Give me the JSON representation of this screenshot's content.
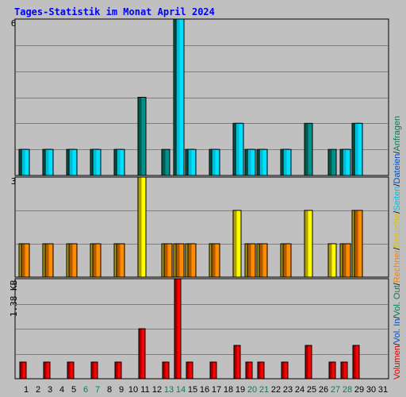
{
  "title": "Tages-Statistik im Monat April 2024",
  "colors": {
    "background": "#c0c0c0",
    "title": "#0000ff",
    "grid": "#808080",
    "weekend_label": "#00805c",
    "hits_front": "#00e0ff",
    "hits_side": "#009090",
    "files_front": "#00bcd4",
    "files_side": "#00806b",
    "visits_front": "#ffff00",
    "visits_side": "#b0a000",
    "sites_front": "#ff8c00",
    "sites_side": "#b05a00",
    "volume_front": "#ff0000",
    "volume_side": "#a00000"
  },
  "right_legend": [
    {
      "text": "Anfragen",
      "color": "#00805c"
    },
    {
      "text": "Dateien",
      "color": "#0050c0"
    },
    {
      "text": "Seiten",
      "color": "#00c0e0"
    },
    {
      "text": "Besuche",
      "color": "#e0c000"
    },
    {
      "text": "Rechner",
      "color": "#ff8000"
    },
    {
      "text": "Vol. Out",
      "color": "#00805c"
    },
    {
      "text": "Vol. In",
      "color": "#0050c0"
    },
    {
      "text": "Volumen",
      "color": "#e00000"
    }
  ],
  "x_labels": [
    {
      "day": "1",
      "weekend": false
    },
    {
      "day": "2",
      "weekend": false
    },
    {
      "day": "3",
      "weekend": false
    },
    {
      "day": "4",
      "weekend": false
    },
    {
      "day": "5",
      "weekend": false
    },
    {
      "day": "6",
      "weekend": true
    },
    {
      "day": "7",
      "weekend": true
    },
    {
      "day": "8",
      "weekend": false
    },
    {
      "day": "9",
      "weekend": false
    },
    {
      "day": "10",
      "weekend": false
    },
    {
      "day": "11",
      "weekend": false
    },
    {
      "day": "12",
      "weekend": false
    },
    {
      "day": "13",
      "weekend": true
    },
    {
      "day": "14",
      "weekend": true
    },
    {
      "day": "15",
      "weekend": false
    },
    {
      "day": "16",
      "weekend": false
    },
    {
      "day": "17",
      "weekend": false
    },
    {
      "day": "18",
      "weekend": false
    },
    {
      "day": "19",
      "weekend": false
    },
    {
      "day": "20",
      "weekend": true
    },
    {
      "day": "21",
      "weekend": true
    },
    {
      "day": "22",
      "weekend": false
    },
    {
      "day": "23",
      "weekend": false
    },
    {
      "day": "24",
      "weekend": false
    },
    {
      "day": "25",
      "weekend": false
    },
    {
      "day": "26",
      "weekend": false
    },
    {
      "day": "27",
      "weekend": true
    },
    {
      "day": "28",
      "weekend": true
    },
    {
      "day": "29",
      "weekend": false
    },
    {
      "day": "30",
      "weekend": false
    },
    {
      "day": "31",
      "weekend": false
    }
  ],
  "chart_data": [
    {
      "type": "bar",
      "panel": "requests",
      "y_max_label": "6",
      "ylim": [
        0,
        6
      ],
      "categories": [
        "1",
        "2",
        "3",
        "4",
        "5",
        "6",
        "7",
        "8",
        "9",
        "10",
        "11",
        "12",
        "13",
        "14",
        "15",
        "16",
        "17",
        "18",
        "19",
        "20",
        "21",
        "22",
        "23",
        "24",
        "25",
        "26",
        "27",
        "28",
        "29",
        "30",
        "31"
      ],
      "series": [
        {
          "name": "Anfragen",
          "values": [
            1,
            0,
            1,
            0,
            1,
            0,
            1,
            0,
            1,
            0,
            3,
            0,
            1,
            6,
            1,
            0,
            1,
            0,
            2,
            1,
            1,
            0,
            1,
            0,
            2,
            0,
            1,
            1,
            2,
            0,
            0
          ]
        },
        {
          "name": "Dateien",
          "values": [
            1,
            0,
            1,
            0,
            1,
            0,
            1,
            0,
            1,
            0,
            0,
            0,
            0,
            6,
            1,
            0,
            1,
            0,
            2,
            1,
            1,
            0,
            1,
            0,
            0,
            0,
            0,
            1,
            2,
            0,
            0
          ]
        },
        {
          "name": "Seiten",
          "values": [
            0,
            0,
            0,
            0,
            0,
            0,
            0,
            0,
            0,
            0,
            0,
            0,
            0,
            0,
            0,
            0,
            0,
            0,
            0,
            0,
            0,
            0,
            0,
            0,
            0,
            0,
            0,
            0,
            0,
            0,
            0
          ]
        }
      ]
    },
    {
      "type": "bar",
      "panel": "visits",
      "y_max_label": "3",
      "ylim": [
        0,
        3
      ],
      "categories": [
        "1",
        "2",
        "3",
        "4",
        "5",
        "6",
        "7",
        "8",
        "9",
        "10",
        "11",
        "12",
        "13",
        "14",
        "15",
        "16",
        "17",
        "18",
        "19",
        "20",
        "21",
        "22",
        "23",
        "24",
        "25",
        "26",
        "27",
        "28",
        "29",
        "30",
        "31"
      ],
      "series": [
        {
          "name": "Besuche",
          "values": [
            1,
            0,
            1,
            0,
            1,
            0,
            1,
            0,
            1,
            0,
            3,
            0,
            1,
            1,
            1,
            0,
            1,
            0,
            2,
            1,
            1,
            0,
            1,
            0,
            2,
            0,
            1,
            1,
            2,
            0,
            0
          ]
        },
        {
          "name": "Rechner",
          "values": [
            1,
            0,
            1,
            0,
            1,
            0,
            1,
            0,
            1,
            0,
            0,
            0,
            1,
            1,
            1,
            0,
            1,
            0,
            0,
            1,
            1,
            0,
            1,
            0,
            0,
            0,
            0,
            1,
            2,
            0,
            0
          ]
        }
      ]
    },
    {
      "type": "bar",
      "panel": "volume",
      "y_max_label": "1.38 KB",
      "ylim": [
        0,
        1.38
      ],
      "categories": [
        "1",
        "2",
        "3",
        "4",
        "5",
        "6",
        "7",
        "8",
        "9",
        "10",
        "11",
        "12",
        "13",
        "14",
        "15",
        "16",
        "17",
        "18",
        "19",
        "20",
        "21",
        "22",
        "23",
        "24",
        "25",
        "26",
        "27",
        "28",
        "29",
        "30",
        "31"
      ],
      "series": [
        {
          "name": "Volumen",
          "values": [
            0.23,
            0,
            0.23,
            0,
            0.23,
            0,
            0.23,
            0,
            0.23,
            0,
            0.69,
            0,
            0.23,
            1.38,
            0.23,
            0,
            0.23,
            0,
            0.46,
            0.23,
            0.23,
            0,
            0.23,
            0,
            0.46,
            0,
            0.23,
            0.23,
            0.46,
            0,
            0
          ]
        }
      ]
    }
  ]
}
